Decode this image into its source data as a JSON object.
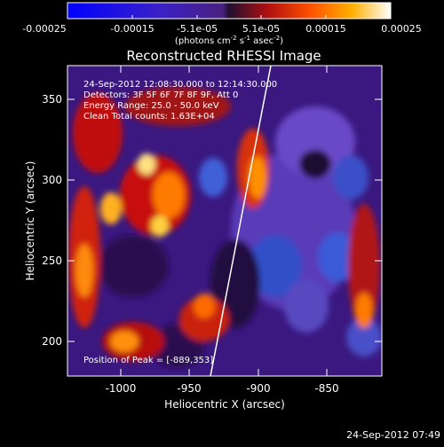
{
  "colorbar": {
    "tick_labels": [
      "-0.00025",
      "-0.00015",
      "-5.1e-05",
      "5.1e-05",
      "0.00015",
      "0.00025"
    ],
    "units_label": "(photons cm",
    "units_exp1": "-2",
    "units_mid": " s",
    "units_exp2": "-1",
    "units_end": " asec",
    "units_exp3": "-2",
    "units_close": ")"
  },
  "title": "Reconstructed RHESSI Image",
  "overlay": {
    "line1": "24-Sep-2012 12:08:30.000 to 12:14:30.000",
    "line2": "Detectors: 3F 5F 6F 7F 8F 9F, Att 0",
    "line3": "Energy Range: 25.0 - 50.0 keV",
    "line4": "Clean     Total counts: 1.63E+04",
    "peak": "Position of Peak = [-889,353]"
  },
  "axes": {
    "x_label": "Heliocentric X (arcsec)",
    "y_label": "Heliocentric Y (arcsec)",
    "x_ticks": [
      "-1000",
      "-950",
      "-900",
      "-850"
    ],
    "y_ticks": [
      "200",
      "250",
      "300",
      "350"
    ]
  },
  "footer": {
    "timestamp": "24-Sep-2012 07:49"
  }
}
